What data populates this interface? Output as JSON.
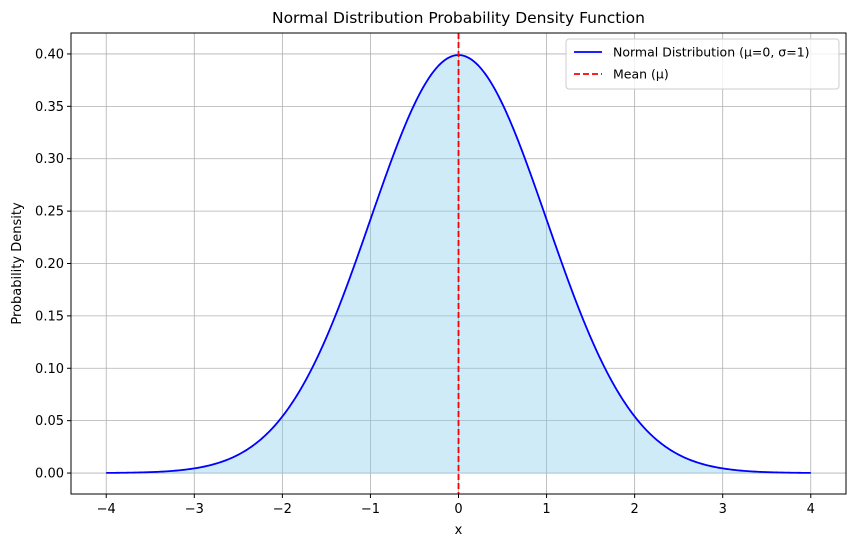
{
  "chart_data": {
    "type": "line",
    "title": "Normal Distribution Probability Density Function",
    "xlabel": "x",
    "ylabel": "Probability Density",
    "xlim": [
      -4.4,
      4.4
    ],
    "ylim": [
      -0.02,
      0.42
    ],
    "x_ticks": [
      -4,
      -3,
      -2,
      -1,
      0,
      1,
      2,
      3,
      4
    ],
    "x_tick_labels": [
      "−4",
      "−3",
      "−2",
      "−1",
      "0",
      "1",
      "2",
      "3",
      "4"
    ],
    "y_ticks": [
      0.0,
      0.05,
      0.1,
      0.15,
      0.2,
      0.25,
      0.3,
      0.35,
      0.4
    ],
    "y_tick_labels": [
      "0.00",
      "0.05",
      "0.10",
      "0.15",
      "0.20",
      "0.25",
      "0.30",
      "0.35",
      "0.40"
    ],
    "grid": true,
    "legend_position": "top-right",
    "series": [
      {
        "name": "Normal Distribution (μ=0, σ=1)",
        "color": "#0000ff",
        "fill_color": "#87ceeb",
        "x": [
          -4.0,
          -3.5,
          -3.0,
          -2.5,
          -2.0,
          -1.5,
          -1.0,
          -0.5,
          0.0,
          0.5,
          1.0,
          1.5,
          2.0,
          2.5,
          3.0,
          3.5,
          4.0
        ],
        "values": [
          0.0001,
          0.0009,
          0.0044,
          0.0175,
          0.054,
          0.1295,
          0.242,
          0.3521,
          0.3989,
          0.3521,
          0.242,
          0.1295,
          0.054,
          0.0175,
          0.0044,
          0.0009,
          0.0001
        ]
      }
    ],
    "reference_lines": [
      {
        "name": "Mean (μ)",
        "x": 0,
        "color": "#ff0000",
        "style": "dashed"
      }
    ]
  }
}
